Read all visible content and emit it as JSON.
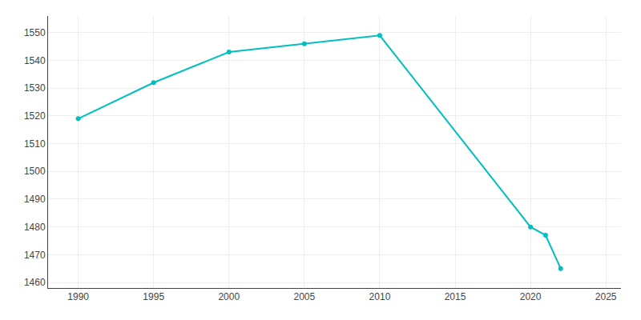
{
  "chart_data": {
    "type": "line",
    "x": [
      1990,
      1995,
      2000,
      2005,
      2010,
      2020,
      2021,
      2022
    ],
    "values": [
      1519,
      1532,
      1543,
      1546,
      1549,
      1480,
      1477,
      1465
    ],
    "color": "#00BFBF",
    "marker": "circle",
    "line_style": "solid",
    "xlim": [
      1988,
      2026
    ],
    "ylim": [
      1458,
      1556
    ],
    "xticks": [
      1990,
      1995,
      2000,
      2005,
      2010,
      2015,
      2020,
      2025
    ],
    "yticks": [
      1460,
      1470,
      1480,
      1490,
      1500,
      1510,
      1520,
      1530,
      1540,
      1550
    ],
    "grid": true
  }
}
